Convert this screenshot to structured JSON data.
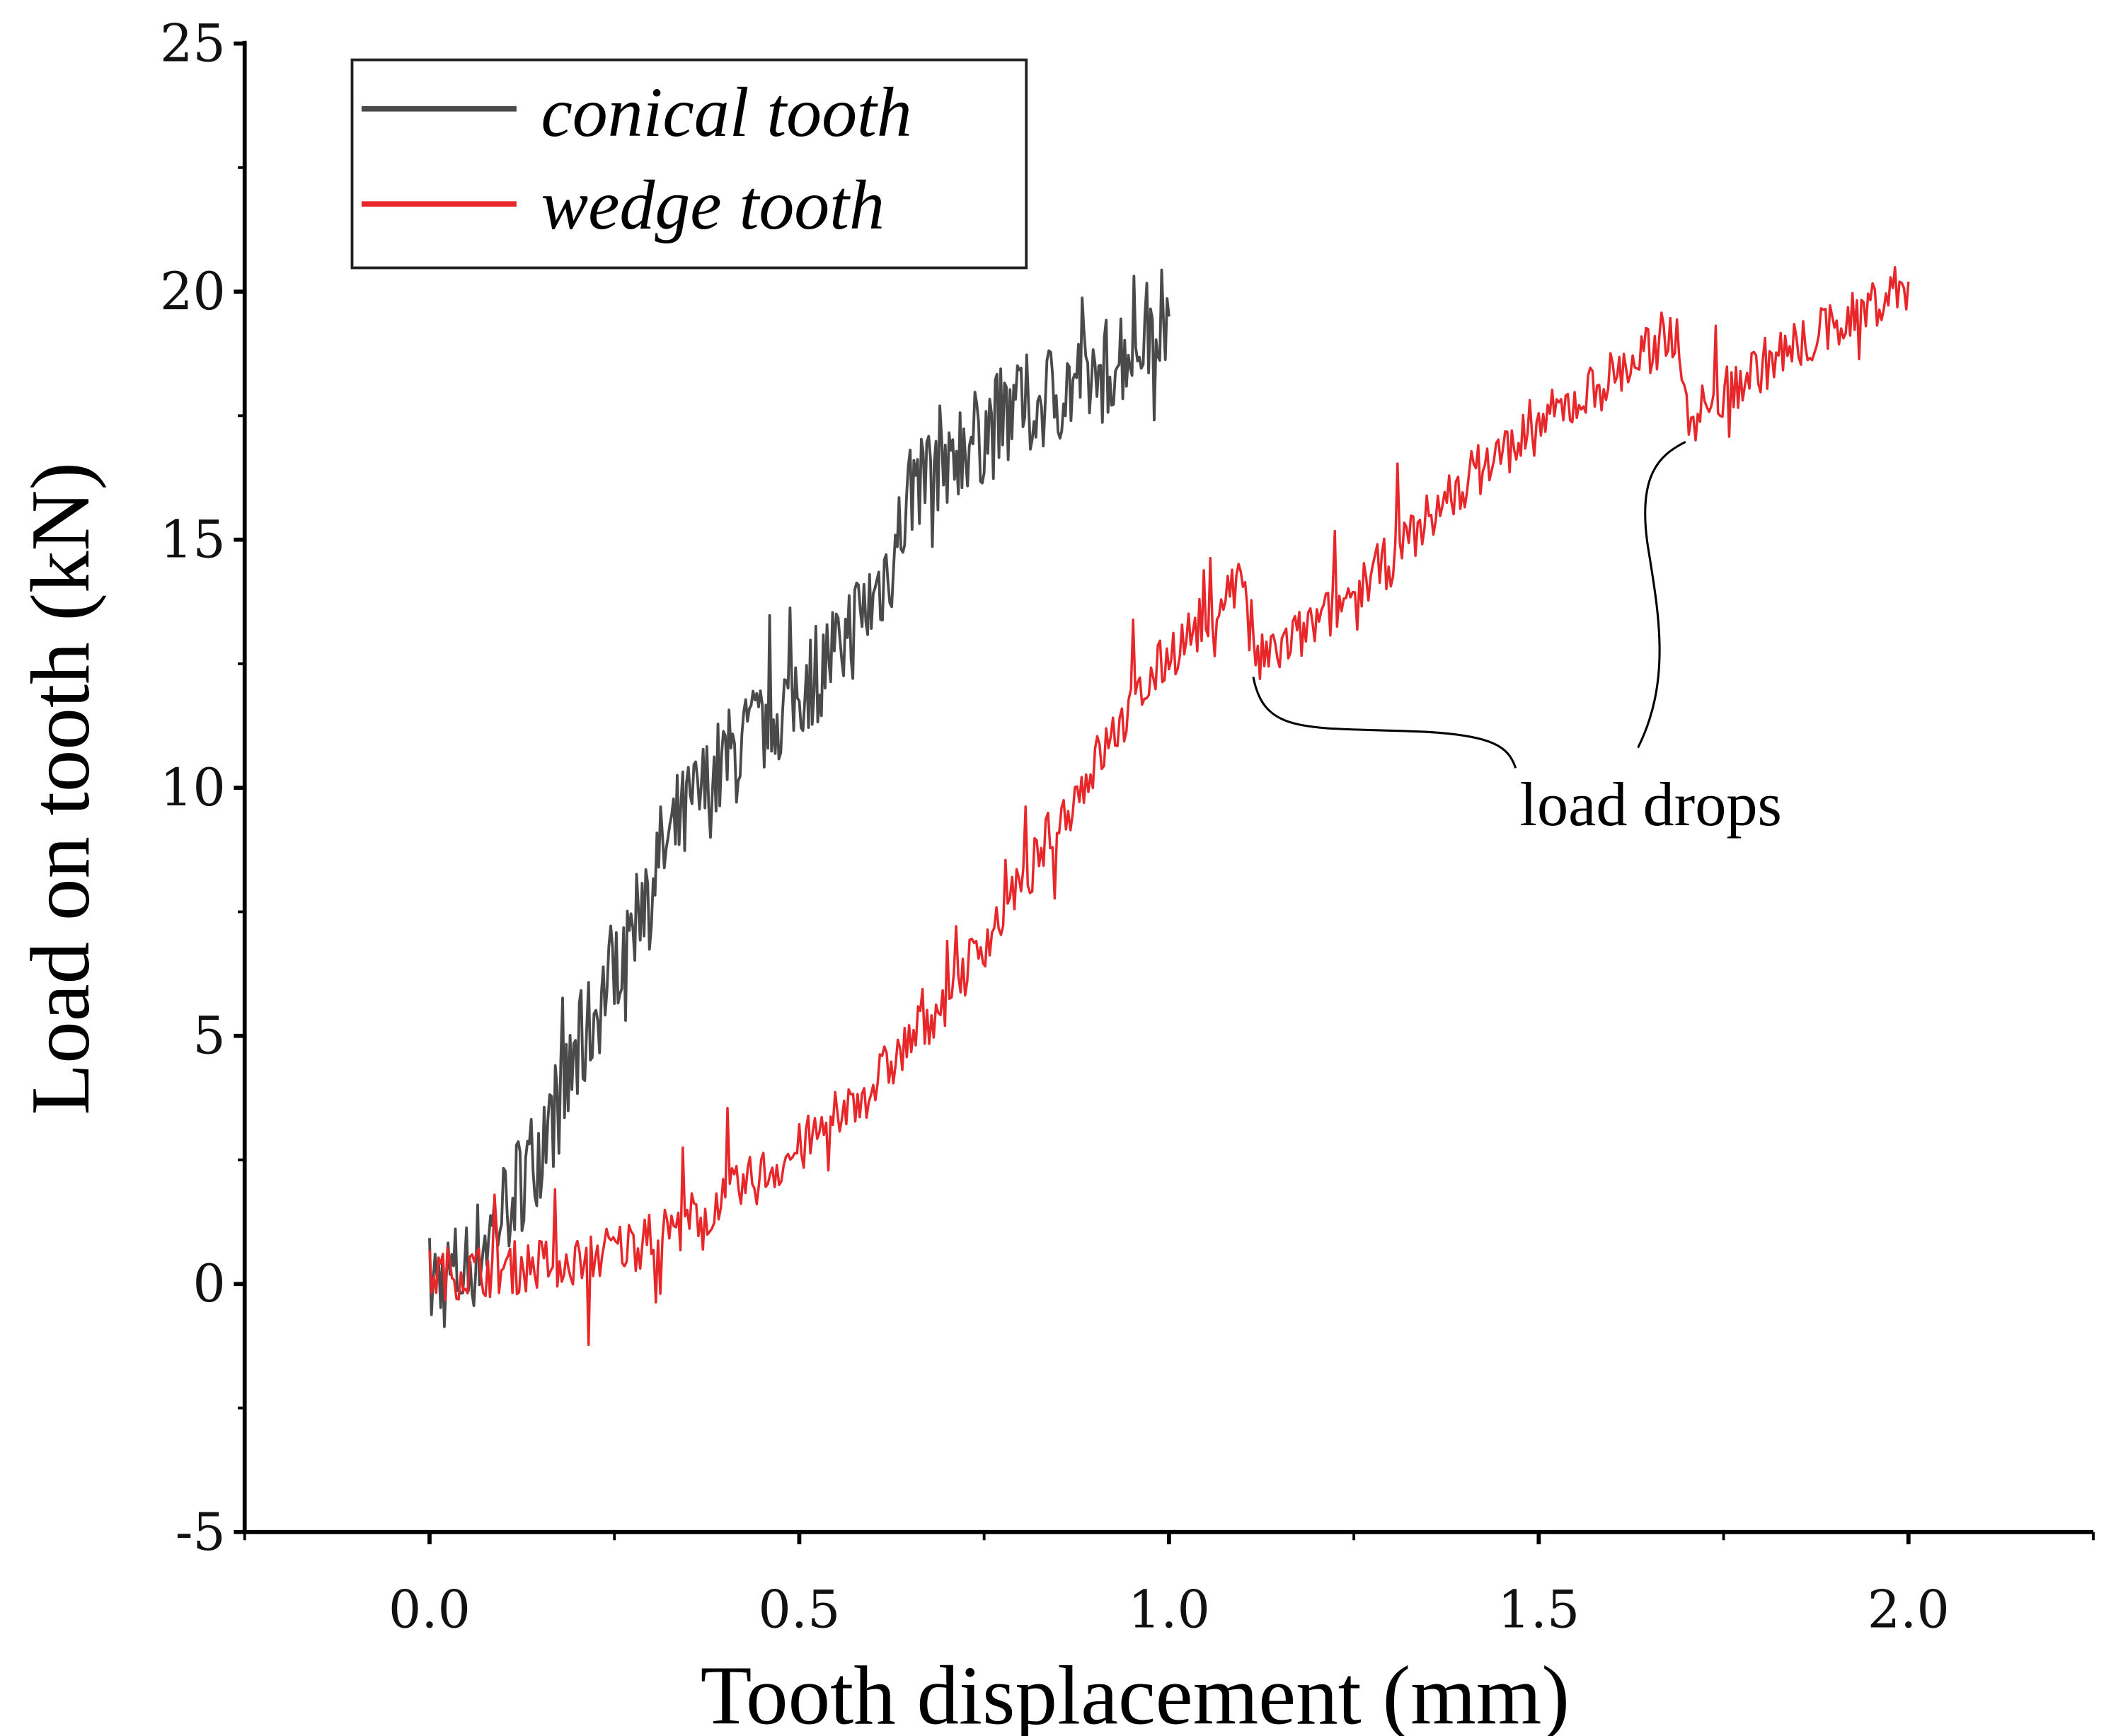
{
  "chart_data": {
    "type": "line",
    "title": "",
    "xlabel": "Tooth displacement (mm)",
    "ylabel": "Load on tooth (kN)",
    "xlim": [
      -0.25,
      2.25
    ],
    "ylim": [
      -5,
      25
    ],
    "xticks": [
      "0.0",
      "0.5",
      "1.0",
      "1.5",
      "2.0"
    ],
    "xtick_values": [
      0,
      0.5,
      1.0,
      1.5,
      2.0
    ],
    "yticks": [
      "-5",
      "0",
      "5",
      "10",
      "15",
      "20",
      "25"
    ],
    "ytick_values": [
      -5,
      0,
      5,
      10,
      15,
      20,
      25
    ],
    "grid": false,
    "legend_position": "top-left",
    "series": [
      {
        "name": "conical tooth",
        "color": "#4a4a4a",
        "x": [
          0,
          0.05,
          0.1,
          0.15,
          0.2,
          0.25,
          0.3,
          0.35,
          0.4,
          0.45,
          0.5,
          0.55,
          0.6,
          0.63,
          0.65,
          0.7,
          0.75,
          0.8,
          0.85,
          0.9,
          0.95,
          1.0
        ],
        "y": [
          0,
          0.3,
          1.5,
          2.8,
          4.5,
          6.5,
          8.3,
          9.5,
          10.5,
          11.2,
          12.0,
          12.8,
          13.8,
          14.8,
          16.0,
          16.8,
          17.2,
          17.6,
          18.0,
          18.3,
          19.0,
          19.5
        ]
      },
      {
        "name": "wedge tooth",
        "color": "#e8272a",
        "x": [
          0,
          0.1,
          0.2,
          0.3,
          0.4,
          0.5,
          0.6,
          0.7,
          0.8,
          0.9,
          1.0,
          1.05,
          1.1,
          1.12,
          1.2,
          1.3,
          1.4,
          1.5,
          1.6,
          1.69,
          1.7,
          1.8,
          1.9,
          2.0
        ],
        "y": [
          0.2,
          0.3,
          0.5,
          0.9,
          1.7,
          2.7,
          4.0,
          5.8,
          8.0,
          10.5,
          12.7,
          13.4,
          14.3,
          12.5,
          13.3,
          14.6,
          16.2,
          17.3,
          18.3,
          19.2,
          17.4,
          18.5,
          19.3,
          20.2
        ]
      }
    ],
    "annotations": [
      {
        "text": "load drops",
        "x": 1.7,
        "y": 9.6,
        "points_to": [
          [
            1.11,
            12.3
          ],
          [
            1.7,
            17.2
          ]
        ]
      }
    ]
  }
}
